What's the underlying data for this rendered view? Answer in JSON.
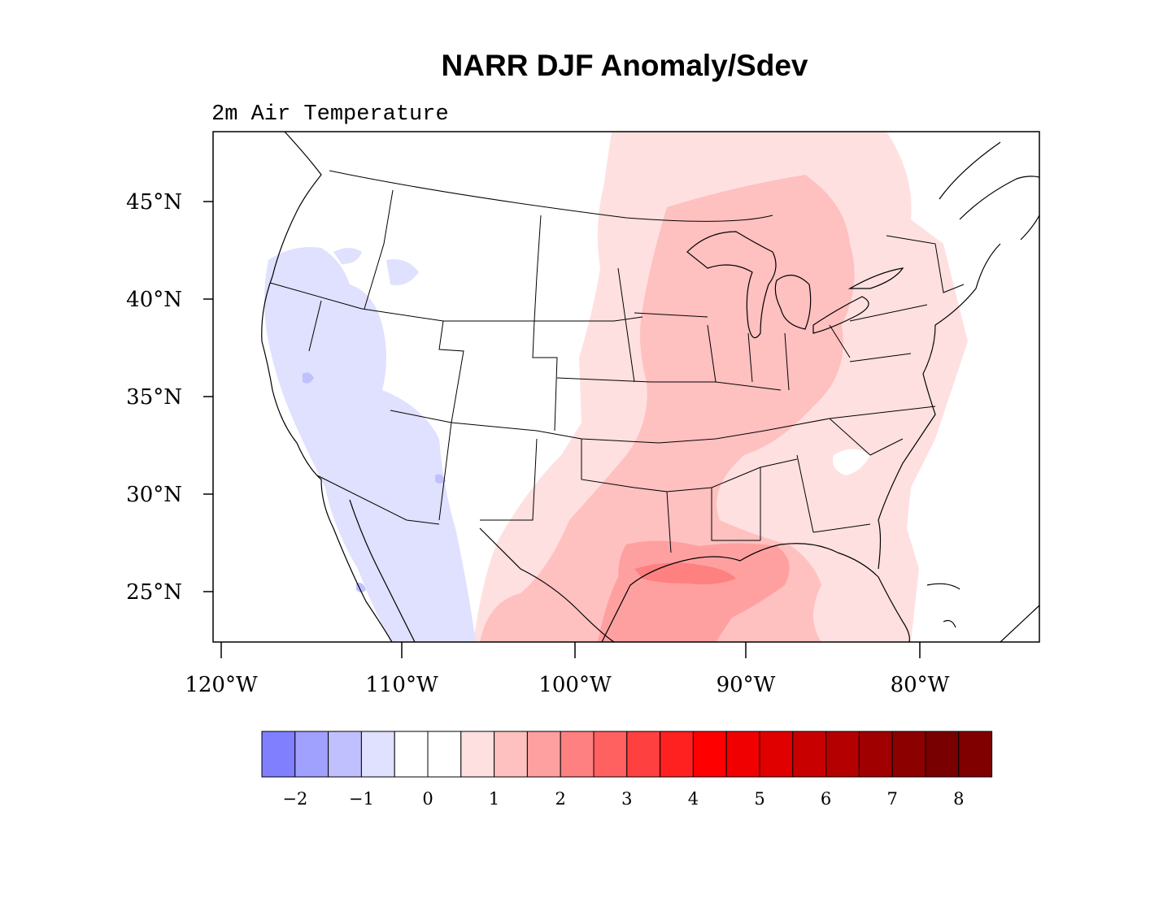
{
  "figure": {
    "title": "NARR DJF Anomaly/Sdev",
    "subtitle": "2m Air Temperature"
  },
  "map": {
    "projection": "Lambert conformal (CONUS)",
    "lat_ticks": [
      {
        "value": 45,
        "label": "45°N"
      },
      {
        "value": 40,
        "label": "40°N"
      },
      {
        "value": 35,
        "label": "35°N"
      },
      {
        "value": 30,
        "label": "30°N"
      },
      {
        "value": 25,
        "label": "25°N"
      }
    ],
    "lon_ticks": [
      {
        "value": -120,
        "label": "120°W"
      },
      {
        "value": -110,
        "label": "110°W"
      },
      {
        "value": -100,
        "label": "100°W"
      },
      {
        "value": -90,
        "label": "90°W"
      },
      {
        "value": -80,
        "label": "80°W"
      }
    ],
    "field": "standardized DJF 2m air temperature anomaly",
    "pattern": "negative (blue, about -1 to -0.5) over the western US and Pacific coast; near zero over the northern Rockies and High Plains; positive (pink to red, 0.5 to 2.5) over the central and eastern US, strongest near the Texas and Louisiana Gulf coast"
  },
  "colorbar": {
    "colors": [
      "#8080ff",
      "#a0a0ff",
      "#c0c0ff",
      "#e0e0ff",
      "#ffffff",
      "#ffffff",
      "#ffe0e0",
      "#ffc0c0",
      "#ffa0a0",
      "#ff8080",
      "#ff6060",
      "#ff4040",
      "#ff2020",
      "#ff0000",
      "#f00000",
      "#e00000",
      "#c80000",
      "#b40000",
      "#a00000",
      "#8c0000",
      "#780000",
      "#800000"
    ],
    "boundaries": [
      -2.25,
      -2,
      -1.5,
      -1,
      -0.5,
      0,
      0.5,
      1,
      1.5,
      2,
      2.5,
      3,
      3.5,
      4,
      4.5,
      5,
      5.5,
      6,
      6.5,
      7,
      7.5,
      8,
      8.5
    ],
    "labels": [
      {
        "value": -2,
        "text": "−2"
      },
      {
        "value": -1,
        "text": "−1"
      },
      {
        "value": 0,
        "text": "0"
      },
      {
        "value": 1,
        "text": "1"
      },
      {
        "value": 2,
        "text": "2"
      },
      {
        "value": 3,
        "text": "3"
      },
      {
        "value": 4,
        "text": "4"
      },
      {
        "value": 5,
        "text": "5"
      },
      {
        "value": 6,
        "text": "6"
      },
      {
        "value": 7,
        "text": "7"
      },
      {
        "value": 8,
        "text": "8"
      }
    ]
  }
}
